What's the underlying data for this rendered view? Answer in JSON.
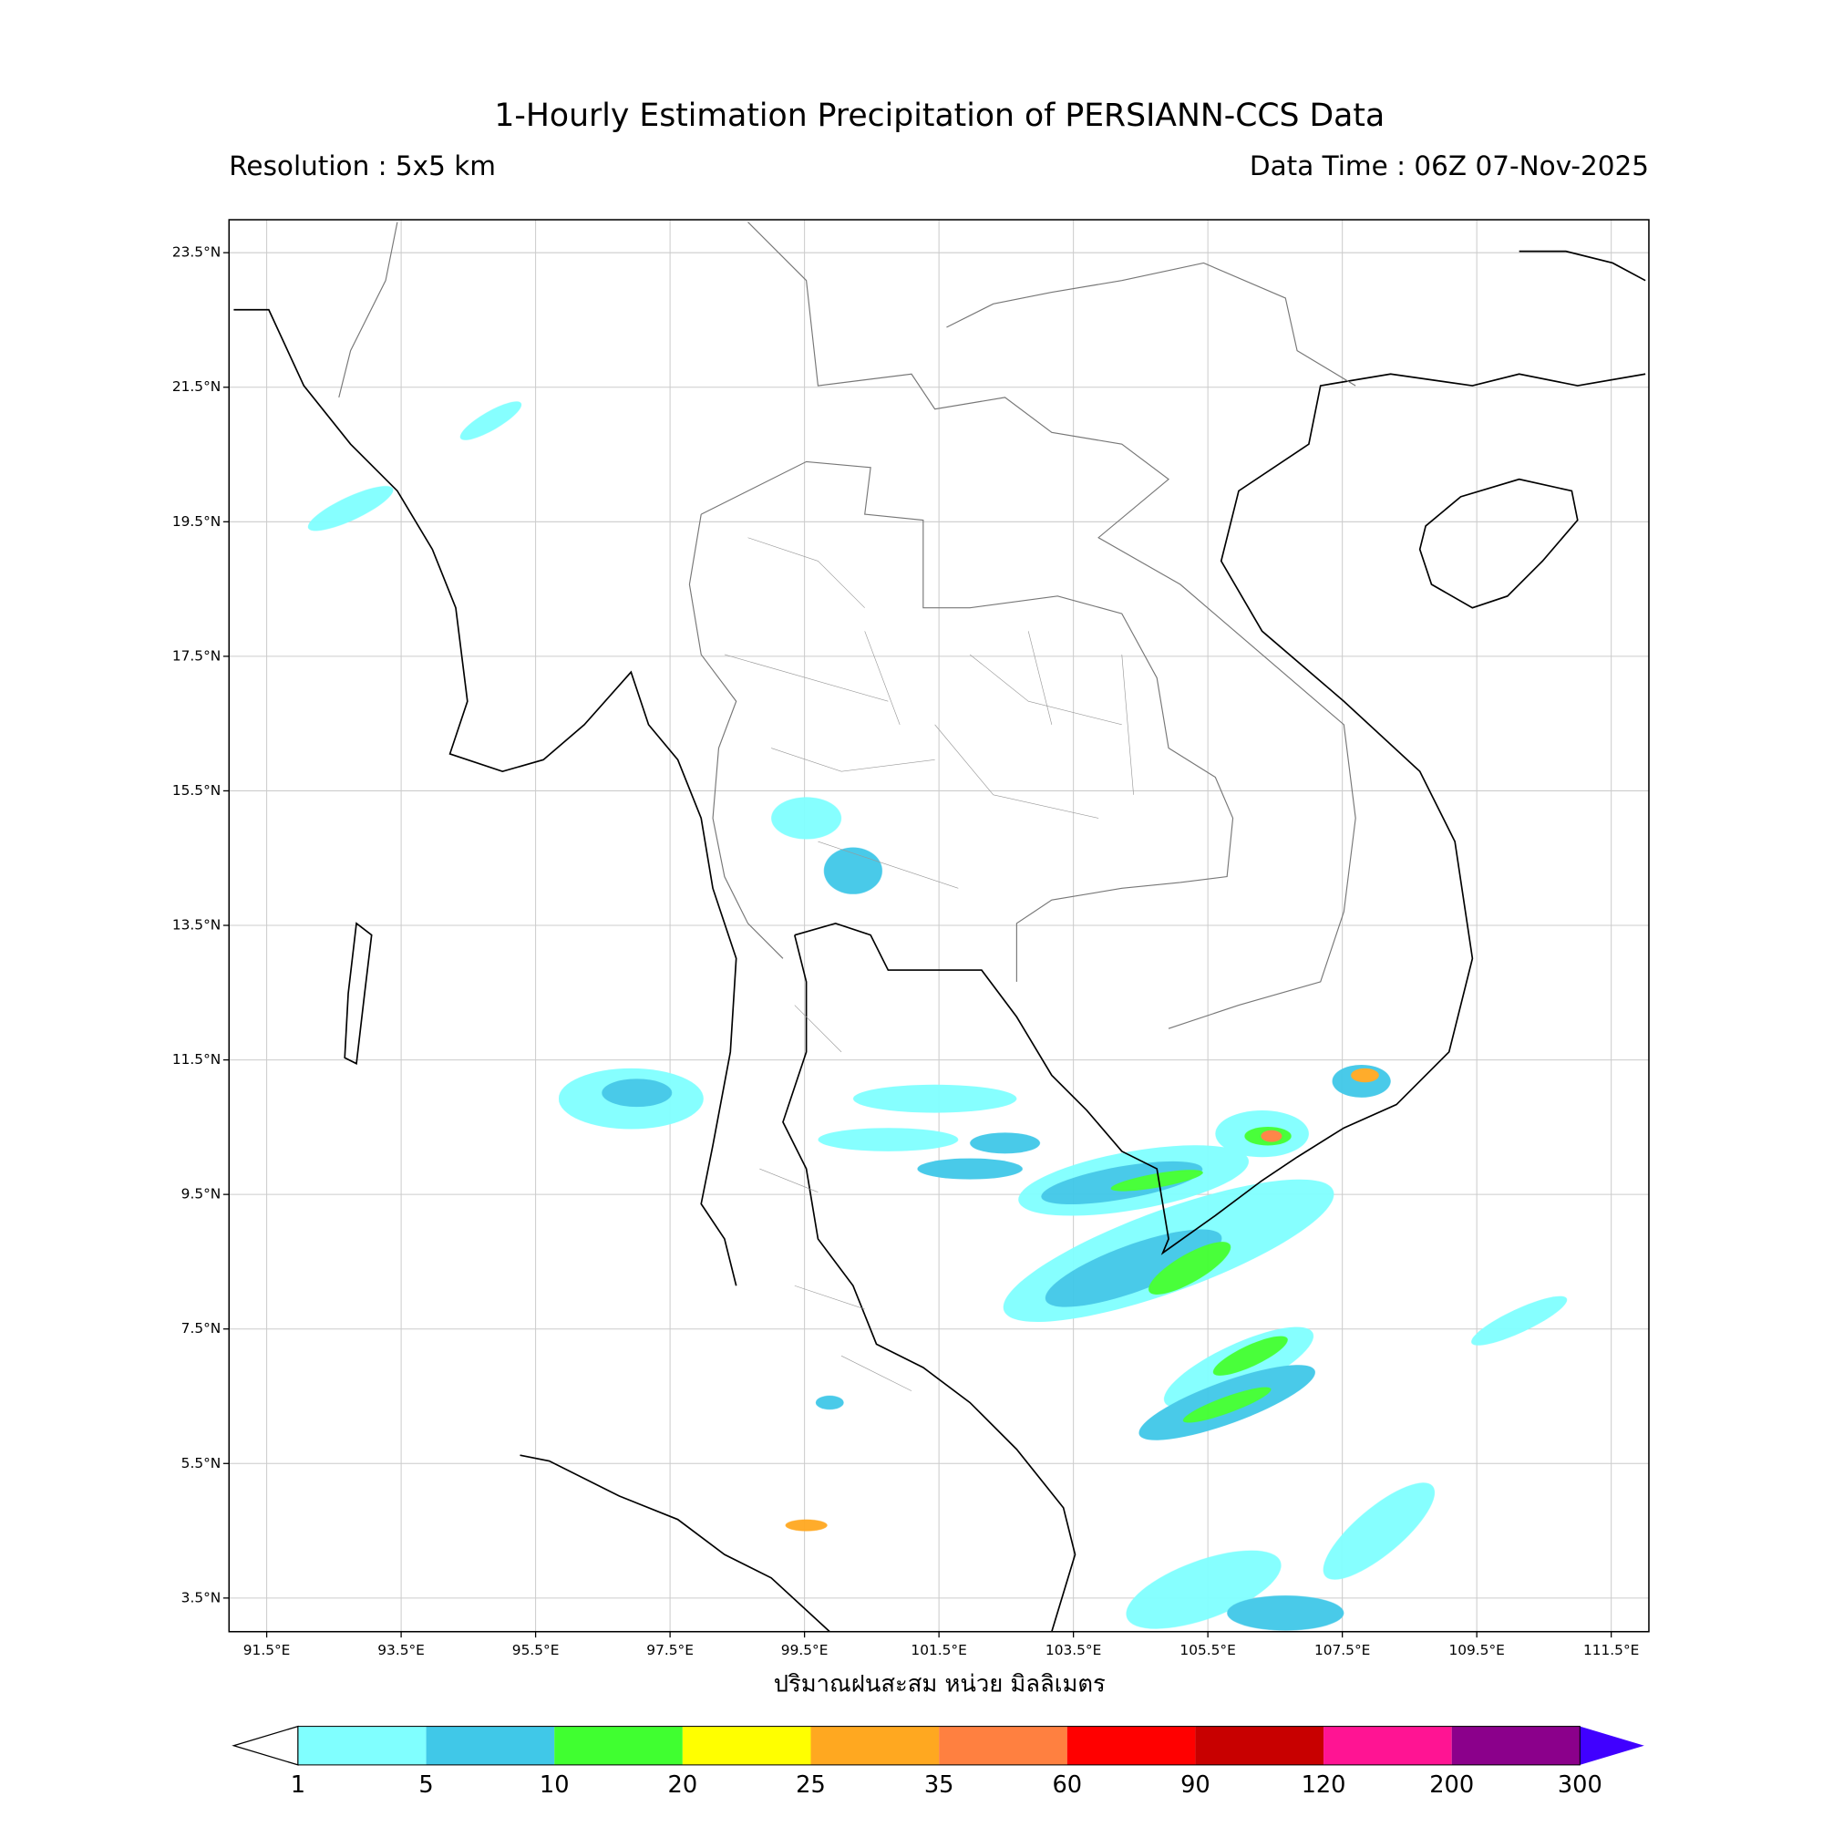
{
  "map": {
    "title": "1-Hourly Estimation Precipitation of PERSIANN-CCS Data",
    "resolution": "Resolution : 5x5 km",
    "data_time": "Data Time : 06Z 07-Nov-2025",
    "x_label": "ปริมาณฝนสะสม หน่วย มิลลิเมตร",
    "xlim": [
      90.94,
      112.06
    ],
    "ylim": [
      3.0,
      23.99
    ],
    "grid": true,
    "xticks": [
      {
        "value": 91.5,
        "label": "91.5°E"
      },
      {
        "value": 93.5,
        "label": "93.5°E"
      },
      {
        "value": 95.5,
        "label": "95.5°E"
      },
      {
        "value": 97.5,
        "label": "97.5°E"
      },
      {
        "value": 99.5,
        "label": "99.5°E"
      },
      {
        "value": 101.5,
        "label": "101.5°E"
      },
      {
        "value": 103.5,
        "label": "103.5°E"
      },
      {
        "value": 105.5,
        "label": "105.5°E"
      },
      {
        "value": 107.5,
        "label": "107.5°E"
      },
      {
        "value": 109.5,
        "label": "109.5°E"
      },
      {
        "value": 111.5,
        "label": "111.5°E"
      }
    ],
    "yticks": [
      {
        "value": 23.5,
        "label": "23.5°N"
      },
      {
        "value": 21.5,
        "label": "21.5°N"
      },
      {
        "value": 19.5,
        "label": "19.5°N"
      },
      {
        "value": 17.5,
        "label": "17.5°N"
      },
      {
        "value": 15.5,
        "label": "15.5°N"
      },
      {
        "value": 13.5,
        "label": "13.5°N"
      },
      {
        "value": 11.5,
        "label": "11.5°N"
      },
      {
        "value": 9.5,
        "label": "9.5°N"
      },
      {
        "value": 7.5,
        "label": "7.5°N"
      },
      {
        "value": 5.5,
        "label": "5.5°N"
      },
      {
        "value": 3.5,
        "label": "3.5°N"
      }
    ],
    "colorbar": {
      "levels": [
        1,
        5,
        10,
        20,
        25,
        35,
        60,
        90,
        120,
        200,
        300
      ],
      "colors": [
        "#80ffff",
        "#40c8e8",
        "#40ff30",
        "#ffff00",
        "#ffa820",
        "#ff8040",
        "#ff0000",
        "#c80000",
        "#ff1493",
        "#8b008b"
      ],
      "under_color": "#ffffff",
      "over_color": "#4000ff"
    }
  }
}
